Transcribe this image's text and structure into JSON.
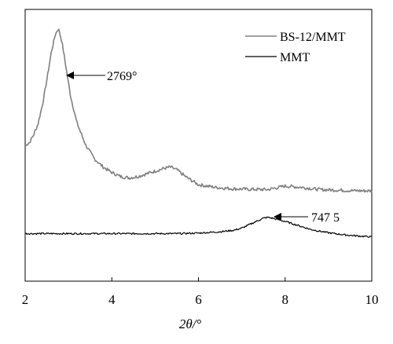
{
  "chart_data": {
    "type": "line",
    "xlabel": "2θ/°",
    "xlim": [
      2,
      10
    ],
    "xticks": [
      "2",
      "4",
      "6",
      "8",
      "10"
    ],
    "ylabel": "",
    "yticks": [],
    "grid": false,
    "legend_position": "top-right",
    "series": [
      {
        "name": "BS-12/MMT",
        "color": "#808080",
        "x": [
          2.0,
          2.1,
          2.2,
          2.3,
          2.4,
          2.5,
          2.6,
          2.7,
          2.77,
          2.85,
          2.95,
          3.05,
          3.2,
          3.4,
          3.6,
          3.8,
          4.0,
          4.2,
          4.4,
          4.6,
          4.8,
          5.0,
          5.2,
          5.35,
          5.5,
          5.7,
          6.0,
          6.4,
          6.8,
          7.2,
          7.6,
          8.0,
          8.4,
          8.8,
          9.2,
          9.6,
          10.0
        ],
        "y": [
          0.5,
          0.51,
          0.54,
          0.58,
          0.65,
          0.74,
          0.84,
          0.91,
          0.93,
          0.88,
          0.78,
          0.68,
          0.58,
          0.5,
          0.45,
          0.42,
          0.4,
          0.385,
          0.38,
          0.385,
          0.395,
          0.405,
          0.415,
          0.42,
          0.41,
          0.385,
          0.355,
          0.345,
          0.34,
          0.338,
          0.337,
          0.35,
          0.345,
          0.337,
          0.335,
          0.333,
          0.332
        ]
      },
      {
        "name": "MMT",
        "color": "#000000",
        "x": [
          2.0,
          2.5,
          3.0,
          3.5,
          4.0,
          4.5,
          5.0,
          5.5,
          6.0,
          6.5,
          6.8,
          7.0,
          7.2,
          7.4,
          7.5,
          7.6,
          7.7,
          7.8,
          8.0,
          8.3,
          8.6,
          9.0,
          9.4,
          9.8,
          10.0
        ],
        "y": [
          0.175,
          0.175,
          0.175,
          0.175,
          0.175,
          0.175,
          0.175,
          0.175,
          0.177,
          0.182,
          0.187,
          0.195,
          0.21,
          0.225,
          0.232,
          0.235,
          0.232,
          0.228,
          0.22,
          0.205,
          0.19,
          0.178,
          0.17,
          0.165,
          0.163
        ]
      }
    ],
    "annotations": [
      {
        "text": "2769°",
        "x": 2.77,
        "y": 0.93
      },
      {
        "text": "747 5",
        "x": 7.6,
        "y": 0.235
      }
    ]
  }
}
